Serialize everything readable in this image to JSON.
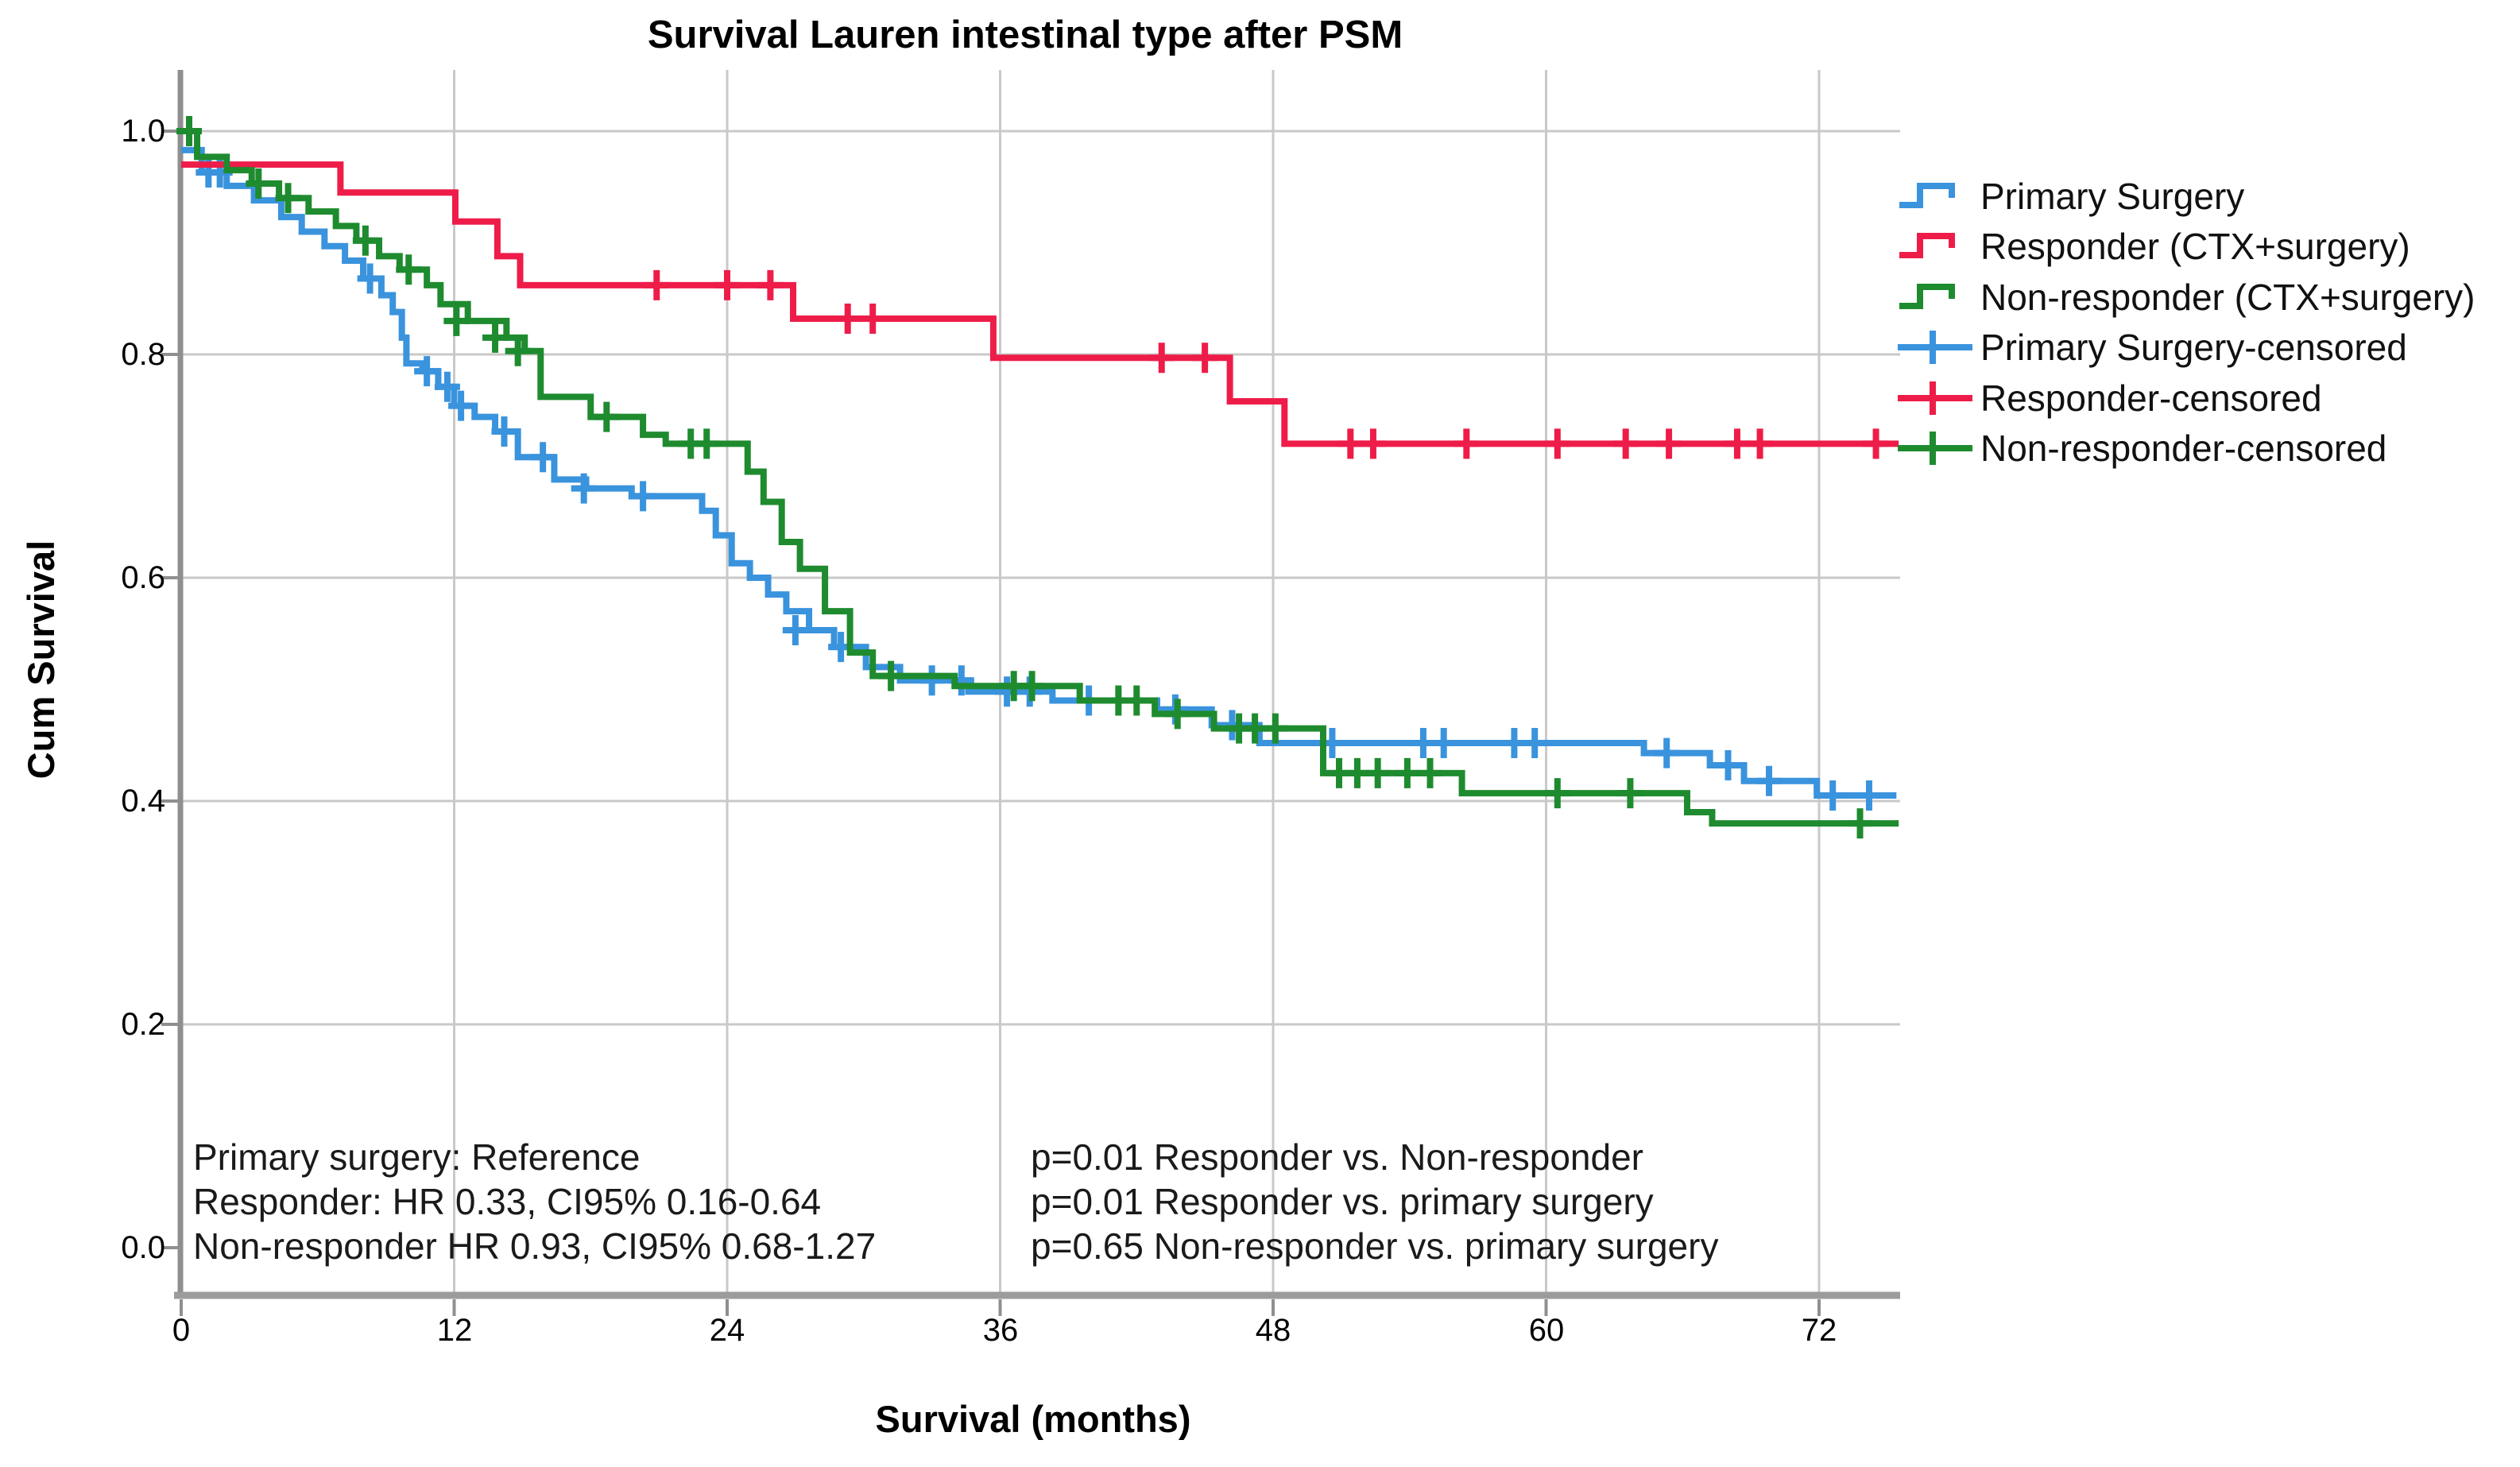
{
  "title": "Survival Lauren intestinal type after PSM",
  "colors": {
    "primary_surgery": "#3a93dd",
    "responder": "#ee1c49",
    "non_responder": "#1e8b2f",
    "grid": "#c9c9c9",
    "axis": "#8f8f8f",
    "text": "#000000",
    "background": "#ffffff"
  },
  "axes": {
    "x_label": "Survival (months)",
    "y_label": "Cum Survival",
    "x_tick_labels": [
      "0",
      "12",
      "24",
      "36",
      "48",
      "60",
      "72"
    ],
    "y_tick_labels": [
      "1.0",
      "0.8",
      "0.6",
      "0.4",
      "0.2",
      "0.0"
    ]
  },
  "annotations": {
    "hr_block": [
      "Primary surgery: Reference",
      "Responder: HR 0.33, CI95% 0.16-0.64",
      "Non-responder HR 0.93, CI95% 0.68-1.27"
    ],
    "p_block": [
      "p=0.01 Responder vs. Non-responder",
      "p=0.01 Responder vs. primary surgery",
      "p=0.65 Non-responder vs. primary surgery"
    ]
  },
  "legend": {
    "items": [
      {
        "label": "Primary Surgery",
        "marker": "step",
        "color": "#3a93dd"
      },
      {
        "label": "Responder (CTX+surgery)",
        "marker": "step",
        "color": "#ee1c49"
      },
      {
        "label": "Non-responder (CTX+surgery)",
        "marker": "step",
        "color": "#1e8b2f"
      },
      {
        "label": "Primary Surgery-censored",
        "marker": "plus",
        "color": "#3a93dd"
      },
      {
        "label": "Responder-censored",
        "marker": "plus",
        "color": "#ee1c49"
      },
      {
        "label": "Non-responder-censored",
        "marker": "plus",
        "color": "#1e8b2f"
      }
    ]
  },
  "chart_data": {
    "type": "line",
    "subtype": "kaplan-meier-step-survival",
    "title": "Survival Lauren intestinal type after PSM",
    "xlabel": "Survival (months)",
    "ylabel": "Cum Survival",
    "xlim": [
      0,
      76
    ],
    "ylim": [
      0.0,
      1.05
    ],
    "x_ticks": [
      0,
      12,
      24,
      36,
      48,
      60,
      72
    ],
    "y_ticks": [
      0.0,
      0.2,
      0.4,
      0.6,
      0.8,
      1.0
    ],
    "grid": true,
    "legend_position": "right",
    "series": [
      {
        "name": "Primary Surgery",
        "color_key": "primary_surgery",
        "end_month": 75.4,
        "steps": [
          [
            0,
            0.983
          ],
          [
            0.9,
            0.963
          ],
          [
            2.0,
            0.951
          ],
          [
            3.2,
            0.938
          ],
          [
            4.4,
            0.923
          ],
          [
            5.3,
            0.91
          ],
          [
            6.3,
            0.897
          ],
          [
            7.2,
            0.884
          ],
          [
            8.0,
            0.868
          ],
          [
            8.8,
            0.853
          ],
          [
            9.3,
            0.838
          ],
          [
            9.7,
            0.815
          ],
          [
            9.9,
            0.792
          ],
          [
            10.6,
            0.785
          ],
          [
            11.3,
            0.771
          ],
          [
            12.0,
            0.754
          ],
          [
            12.9,
            0.744
          ],
          [
            13.8,
            0.731
          ],
          [
            14.8,
            0.708
          ],
          [
            16.4,
            0.688
          ],
          [
            17.8,
            0.68
          ],
          [
            19.8,
            0.673
          ],
          [
            22.9,
            0.66
          ],
          [
            23.5,
            0.638
          ],
          [
            24.2,
            0.613
          ],
          [
            25.0,
            0.6
          ],
          [
            25.8,
            0.585
          ],
          [
            26.6,
            0.57
          ],
          [
            27.6,
            0.553
          ],
          [
            28.7,
            0.538
          ],
          [
            30.1,
            0.52
          ],
          [
            31.6,
            0.508
          ],
          [
            34.6,
            0.498
          ],
          [
            38.3,
            0.49
          ],
          [
            42.9,
            0.482
          ],
          [
            45.3,
            0.468
          ],
          [
            47.4,
            0.452
          ],
          [
            64.3,
            0.443
          ],
          [
            67.2,
            0.432
          ],
          [
            68.7,
            0.418
          ],
          [
            71.9,
            0.405
          ]
        ],
        "censored": [
          [
            1.2,
            0.963
          ],
          [
            1.7,
            0.963
          ],
          [
            8.3,
            0.868
          ],
          [
            10.8,
            0.785
          ],
          [
            11.7,
            0.771
          ],
          [
            12.3,
            0.754
          ],
          [
            14.2,
            0.731
          ],
          [
            15.9,
            0.708
          ],
          [
            17.7,
            0.68
          ],
          [
            20.3,
            0.673
          ],
          [
            27.0,
            0.553
          ],
          [
            29.0,
            0.538
          ],
          [
            33.0,
            0.508
          ],
          [
            34.3,
            0.508
          ],
          [
            36.3,
            0.498
          ],
          [
            37.3,
            0.498
          ],
          [
            39.9,
            0.49
          ],
          [
            43.7,
            0.482
          ],
          [
            46.2,
            0.468
          ],
          [
            50.6,
            0.452
          ],
          [
            54.6,
            0.452
          ],
          [
            55.5,
            0.452
          ],
          [
            58.6,
            0.452
          ],
          [
            59.5,
            0.452
          ],
          [
            65.3,
            0.443
          ],
          [
            68.0,
            0.432
          ],
          [
            69.8,
            0.418
          ],
          [
            72.6,
            0.405
          ],
          [
            74.2,
            0.405
          ]
        ]
      },
      {
        "name": "Responder (CTX+surgery)",
        "color_key": "responder",
        "end_month": 75.5,
        "steps": [
          [
            0,
            0.97
          ],
          [
            7.0,
            0.945
          ],
          [
            12.05,
            0.919
          ],
          [
            13.9,
            0.888
          ],
          [
            14.9,
            0.862
          ],
          [
            26.9,
            0.832
          ],
          [
            35.7,
            0.797
          ],
          [
            46.1,
            0.758
          ],
          [
            48.5,
            0.72
          ]
        ],
        "censored": [
          [
            20.9,
            0.862
          ],
          [
            24.0,
            0.862
          ],
          [
            25.9,
            0.862
          ],
          [
            29.3,
            0.832
          ],
          [
            30.4,
            0.832
          ],
          [
            43.1,
            0.797
          ],
          [
            45.0,
            0.797
          ],
          [
            51.4,
            0.72
          ],
          [
            52.4,
            0.72
          ],
          [
            56.5,
            0.72
          ],
          [
            60.5,
            0.72
          ],
          [
            63.5,
            0.72
          ],
          [
            65.4,
            0.72
          ],
          [
            68.4,
            0.72
          ],
          [
            69.4,
            0.72
          ],
          [
            74.5,
            0.72
          ]
        ]
      },
      {
        "name": "Non-responder (CTX+surgery)",
        "color_key": "non_responder",
        "end_month": 75.5,
        "steps": [
          [
            0,
            1.0
          ],
          [
            0.7,
            0.977
          ],
          [
            2.0,
            0.965
          ],
          [
            3.1,
            0.953
          ],
          [
            4.3,
            0.94
          ],
          [
            5.6,
            0.928
          ],
          [
            6.8,
            0.915
          ],
          [
            7.7,
            0.902
          ],
          [
            8.7,
            0.888
          ],
          [
            9.6,
            0.876
          ],
          [
            10.8,
            0.862
          ],
          [
            11.4,
            0.845
          ],
          [
            12.6,
            0.83
          ],
          [
            14.3,
            0.815
          ],
          [
            15.1,
            0.803
          ],
          [
            15.8,
            0.762
          ],
          [
            18.0,
            0.744
          ],
          [
            20.3,
            0.728
          ],
          [
            21.3,
            0.72
          ],
          [
            24.9,
            0.695
          ],
          [
            25.6,
            0.668
          ],
          [
            26.4,
            0.632
          ],
          [
            27.2,
            0.608
          ],
          [
            28.3,
            0.57
          ],
          [
            29.4,
            0.533
          ],
          [
            30.4,
            0.512
          ],
          [
            34.0,
            0.503
          ],
          [
            39.5,
            0.49
          ],
          [
            42.8,
            0.478
          ],
          [
            45.4,
            0.465
          ],
          [
            50.2,
            0.425
          ],
          [
            56.3,
            0.407
          ],
          [
            66.2,
            0.39
          ],
          [
            67.3,
            0.38
          ]
        ],
        "censored": [
          [
            0.35,
            1.0
          ],
          [
            3.4,
            0.953
          ],
          [
            4.7,
            0.94
          ],
          [
            8.1,
            0.902
          ],
          [
            10.0,
            0.876
          ],
          [
            12.1,
            0.83
          ],
          [
            13.8,
            0.815
          ],
          [
            14.8,
            0.803
          ],
          [
            18.7,
            0.744
          ],
          [
            22.4,
            0.72
          ],
          [
            23.1,
            0.72
          ],
          [
            31.2,
            0.512
          ],
          [
            36.6,
            0.503
          ],
          [
            37.4,
            0.503
          ],
          [
            41.2,
            0.49
          ],
          [
            42.0,
            0.49
          ],
          [
            43.8,
            0.478
          ],
          [
            46.5,
            0.465
          ],
          [
            47.2,
            0.465
          ],
          [
            48.1,
            0.465
          ],
          [
            50.9,
            0.425
          ],
          [
            51.7,
            0.425
          ],
          [
            52.6,
            0.425
          ],
          [
            53.9,
            0.425
          ],
          [
            54.9,
            0.425
          ],
          [
            60.5,
            0.407
          ],
          [
            63.7,
            0.407
          ],
          [
            73.8,
            0.38
          ]
        ]
      }
    ]
  }
}
